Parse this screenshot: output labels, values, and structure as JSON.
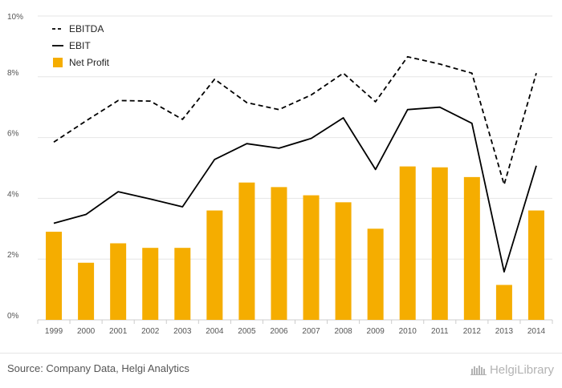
{
  "chart_data": {
    "type": "bar",
    "categories": [
      "1999",
      "2000",
      "2001",
      "2002",
      "2003",
      "2004",
      "2005",
      "2006",
      "2007",
      "2008",
      "2009",
      "2010",
      "2011",
      "2012",
      "2013",
      "2014"
    ],
    "ylim": [
      0,
      10
    ],
    "yticks": [
      0,
      2,
      4,
      6,
      8,
      10
    ],
    "ytick_labels": [
      "0%",
      "2%",
      "4%",
      "6%",
      "8%",
      "10%"
    ],
    "grid": true,
    "legend_position": "top-left",
    "series": [
      {
        "name": "EBITDA",
        "kind": "line",
        "style": "dashed",
        "color": "#000000",
        "values": [
          5.85,
          6.55,
          7.22,
          7.2,
          6.6,
          7.92,
          7.15,
          6.92,
          7.4,
          8.12,
          7.18,
          8.66,
          8.42,
          8.12,
          4.45,
          8.12
        ]
      },
      {
        "name": "EBIT",
        "kind": "line",
        "style": "solid",
        "color": "#000000",
        "values": [
          3.18,
          3.47,
          4.22,
          3.98,
          3.72,
          5.28,
          5.8,
          5.65,
          5.97,
          6.65,
          4.95,
          6.92,
          7.0,
          6.47,
          1.58,
          5.07
        ]
      },
      {
        "name": "Net Profit",
        "kind": "bar",
        "color": "#f5ad00",
        "values": [
          2.9,
          1.88,
          2.52,
          2.37,
          2.37,
          3.6,
          4.52,
          4.37,
          4.1,
          3.87,
          3.0,
          5.05,
          5.02,
          4.7,
          1.15,
          3.6
        ]
      }
    ]
  },
  "footer": {
    "source": "Source: Company Data, Helgi Analytics",
    "brand": "HelgiLibrary"
  }
}
